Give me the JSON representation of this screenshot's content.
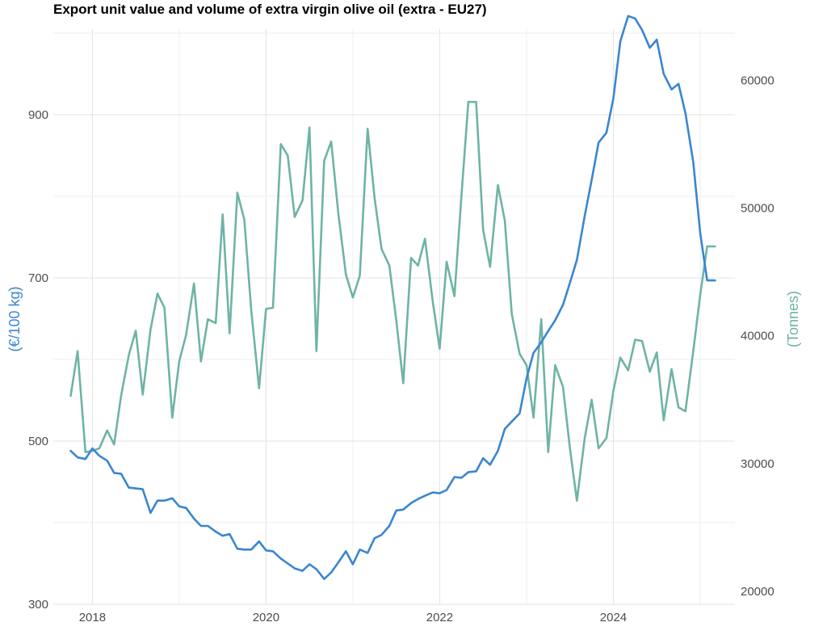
{
  "chart_data": {
    "type": "line",
    "title": "Export unit value and volume of extra virgin olive oil (extra - EU27)",
    "xlabel": "",
    "x_ticks": [
      "2018",
      "2020",
      "2022",
      "2024"
    ],
    "x_range": [
      2017.55,
      2025.4
    ],
    "grid": true,
    "y_left": {
      "label": "(€/100 kg)",
      "ticks": [
        300,
        500,
        700,
        900
      ],
      "range": [
        300,
        1005
      ],
      "color": "#3a86d0"
    },
    "y_right": {
      "label": "(Tonnes)",
      "ticks": [
        20000,
        30000,
        40000,
        50000,
        60000
      ],
      "range": [
        19000,
        64000
      ],
      "color": "#6fb3a6"
    },
    "x": [
      2017.75,
      2017.83,
      2017.92,
      2018.0,
      2018.08,
      2018.17,
      2018.25,
      2018.33,
      2018.42,
      2018.5,
      2018.58,
      2018.67,
      2018.75,
      2018.83,
      2018.92,
      2019.0,
      2019.08,
      2019.17,
      2019.25,
      2019.33,
      2019.42,
      2019.5,
      2019.58,
      2019.67,
      2019.75,
      2019.83,
      2019.92,
      2020.0,
      2020.08,
      2020.17,
      2020.25,
      2020.33,
      2020.42,
      2020.5,
      2020.58,
      2020.67,
      2020.75,
      2020.83,
      2020.92,
      2021.0,
      2021.08,
      2021.17,
      2021.25,
      2021.33,
      2021.42,
      2021.5,
      2021.58,
      2021.67,
      2021.75,
      2021.83,
      2021.92,
      2022.0,
      2022.08,
      2022.17,
      2022.25,
      2022.33,
      2022.42,
      2022.5,
      2022.58,
      2022.67,
      2022.75,
      2022.83,
      2022.92,
      2023.0,
      2023.08,
      2023.17,
      2023.25,
      2023.33,
      2023.42,
      2023.5,
      2023.58,
      2023.67,
      2023.75,
      2023.83,
      2023.92,
      2024.0,
      2024.08,
      2024.17,
      2024.25,
      2024.33,
      2024.42,
      2024.5,
      2024.58,
      2024.67,
      2024.75,
      2024.83,
      2024.92,
      2025.0,
      2025.08,
      2025.17
    ],
    "series": [
      {
        "name": "(€/100 kg)",
        "axis": "left",
        "color": "#3a86d0",
        "values": [
          488,
          480,
          478,
          491,
          482,
          476,
          461,
          460,
          443,
          442,
          441,
          412,
          427,
          427,
          430,
          420,
          418,
          405,
          396,
          396,
          389,
          384,
          386,
          368,
          367,
          367,
          377,
          366,
          365,
          356,
          350,
          344,
          341,
          349,
          343,
          331,
          339,
          351,
          365,
          349,
          367,
          363,
          381,
          385,
          396,
          415,
          416,
          424,
          429,
          433,
          437,
          436,
          440,
          456,
          455,
          462,
          463,
          479,
          471,
          488,
          515,
          524,
          534,
          577,
          608,
          621,
          635,
          648,
          667,
          694,
          722,
          776,
          820,
          866,
          878,
          920,
          990,
          1021,
          1018,
          1004,
          982,
          992,
          950,
          931,
          938,
          902,
          842,
          755,
          697,
          697
        ]
      },
      {
        "name": "(Tonnes)",
        "axis": "right",
        "color": "#6fb3a6",
        "values": [
          35300,
          38800,
          30900,
          31000,
          31200,
          32600,
          31500,
          35300,
          38500,
          40400,
          35400,
          40500,
          43300,
          42200,
          33600,
          38000,
          40100,
          44100,
          38000,
          41300,
          41000,
          49500,
          40200,
          51200,
          49100,
          42000,
          35900,
          42100,
          42200,
          55000,
          54100,
          49300,
          50600,
          56300,
          38800,
          53700,
          55200,
          49700,
          44800,
          43000,
          44700,
          56200,
          50800,
          46800,
          45500,
          41200,
          36300,
          46100,
          45500,
          47600,
          42700,
          39000,
          45800,
          43100,
          50900,
          58300,
          58300,
          48300,
          45400,
          51800,
          49000,
          41700,
          38600,
          37700,
          33600,
          41300,
          30900,
          37700,
          36000,
          31200,
          27100,
          32000,
          35000,
          31200,
          32000,
          35700,
          38300,
          37300,
          39700,
          39600,
          37200,
          38700,
          33400,
          37400,
          34400,
          34100,
          38800,
          43200,
          47000,
          47000
        ]
      }
    ]
  }
}
